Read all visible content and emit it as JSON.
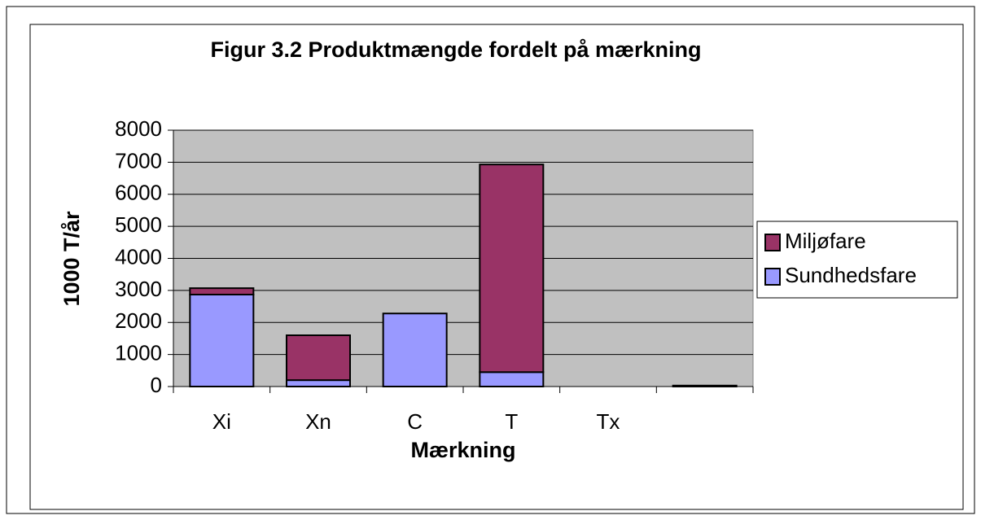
{
  "chart_data": {
    "type": "stacked_bar",
    "title": "Figur 3.2 Produktmængde fordelt på mærkning",
    "x_label": "Mærkning",
    "y_label": "1000 T/år",
    "categories": [
      "Xi",
      "Xn",
      "C",
      "T",
      "Tx",
      null
    ],
    "series": [
      {
        "name": "Sundhedsfare",
        "color": "#9999ff",
        "values": [
          2870,
          200,
          2280,
          450,
          0,
          0
        ]
      },
      {
        "name": "Miljøfare",
        "color": "#993366",
        "values": [
          200,
          1400,
          0,
          6480,
          0,
          30
        ]
      }
    ],
    "ylim": [
      0,
      8000
    ],
    "yticks": [
      0,
      1000,
      2000,
      3000,
      4000,
      5000,
      6000,
      7000,
      8000
    ],
    "grid": true,
    "legend": "right"
  }
}
